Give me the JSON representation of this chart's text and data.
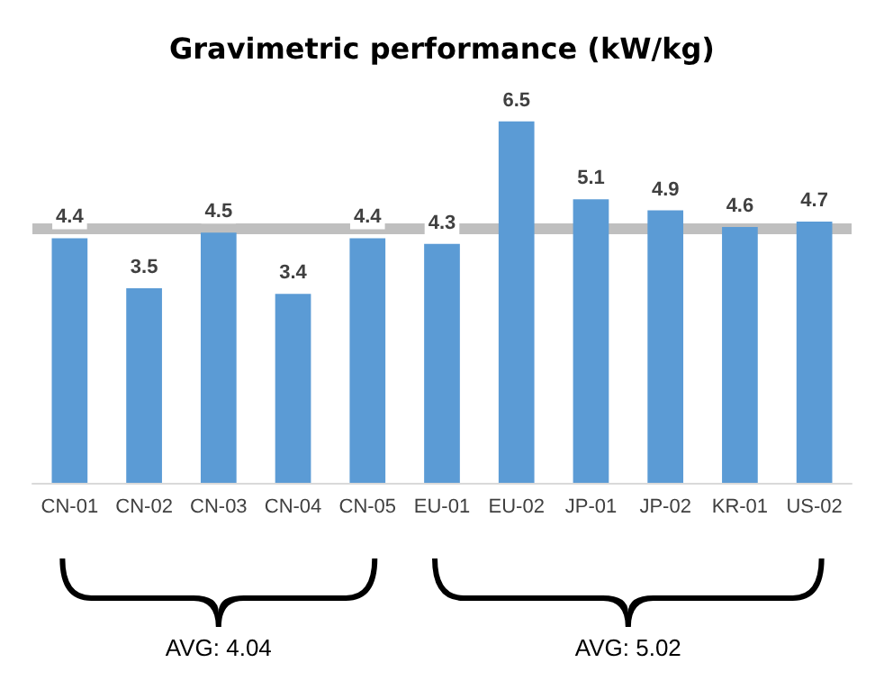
{
  "chart_data": {
    "type": "bar",
    "title": "Gravimetric performance (kW/kg)",
    "categories": [
      "CN-01",
      "CN-02",
      "CN-03",
      "CN-04",
      "CN-05",
      "EU-01",
      "EU-02",
      "JP-01",
      "JP-02",
      "KR-01",
      "US-02"
    ],
    "values": [
      4.4,
      3.5,
      4.5,
      3.4,
      4.4,
      4.3,
      6.5,
      5.1,
      4.9,
      4.6,
      4.7
    ],
    "color": "#5b9bd5",
    "tick_labels": "x",
    "data_labels": true,
    "ref_lines": [
      {
        "axis": "y",
        "value": 4.57,
        "color": "#bfbfbf"
      }
    ],
    "annotations": [
      "AVG: 4.04",
      "AVG: 5.02"
    ]
  }
}
